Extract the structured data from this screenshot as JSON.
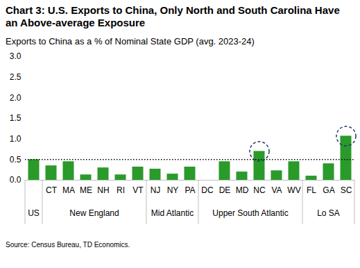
{
  "chart_data": {
    "type": "bar",
    "title": "Chart 3: U.S. Exports to China, Only North and South Carolina Have an Above-average Exposure",
    "subtitle": "Exports to China as a % of Nominal State GDP (avg. 2023-24)",
    "source": "Source: Census Bureau, TD Economics.",
    "categories": [
      null,
      "CT",
      "MA",
      "ME",
      "NH",
      "RI",
      "VT",
      "NJ",
      "NY",
      "PA",
      "DC",
      "DE",
      "MD",
      "NC",
      "VA",
      "WV",
      "FL",
      "GA",
      "SC"
    ],
    "values": [
      0.5,
      0.35,
      0.45,
      0.13,
      0.3,
      0.13,
      0.32,
      0.27,
      0.15,
      0.32,
      0.0,
      0.45,
      0.2,
      0.7,
      0.23,
      0.45,
      0.1,
      0.4,
      1.07
    ],
    "groups": [
      {
        "name": "US",
        "size": 1
      },
      {
        "name": "New England",
        "size": 6
      },
      {
        "name": "Mid Atlantic",
        "size": 3
      },
      {
        "name": "Upper South Atlantic",
        "size": 6
      },
      {
        "name": "Lo SA",
        "size": 3
      }
    ],
    "color": "#2a9a2a",
    "ylim": [
      0,
      3
    ],
    "yticks": [
      {
        "value": 0,
        "label": "0.0"
      },
      0.5,
      {
        "value": 1,
        "label": "1.0"
      },
      1.5,
      {
        "value": 2,
        "label": "2.0"
      },
      2.5,
      {
        "value": 3,
        "label": "3.0"
      }
    ],
    "grid": false,
    "reference_line": {
      "value": 0.5,
      "line_style": "dotted"
    },
    "highlight": {
      "categories": [
        "NC",
        "SC"
      ],
      "line_style": "dashed",
      "color": "#1f3864"
    }
  }
}
